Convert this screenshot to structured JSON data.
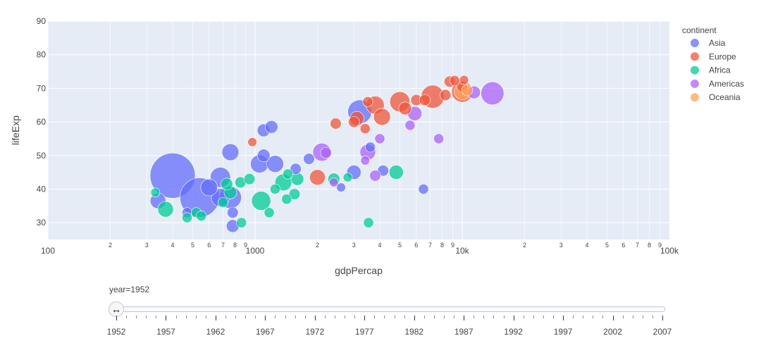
{
  "chart_data": {
    "type": "scatter",
    "xlabel": "gdpPercap",
    "ylabel": "lifeExp",
    "xscale": "log",
    "xlim": [
      100,
      100000
    ],
    "ylim": [
      25,
      90
    ],
    "grid": true,
    "legend_title": "continent",
    "legend_position": "right",
    "x_ticklabels_major": [
      "100",
      "1000",
      "10k",
      "100k"
    ],
    "x_ticklabels_minor": [
      "2",
      "3",
      "4",
      "5",
      "6",
      "7",
      "8",
      "9"
    ],
    "y_ticks": [
      30,
      40,
      50,
      60,
      70,
      80,
      90
    ],
    "series": [
      {
        "name": "Asia",
        "color": "#636efa",
        "points": [
          {
            "x": 400,
            "y": 44,
            "s": 1.0
          },
          {
            "x": 540,
            "y": 37.5,
            "s": 0.76
          },
          {
            "x": 3200,
            "y": 63,
            "s": 0.28
          },
          {
            "x": 600,
            "y": 40.5,
            "s": 0.14
          },
          {
            "x": 680,
            "y": 43.5,
            "s": 0.2
          },
          {
            "x": 680,
            "y": 37.5,
            "s": 0.16
          },
          {
            "x": 760,
            "y": 37.5,
            "s": 0.24
          },
          {
            "x": 760,
            "y": 51,
            "s": 0.14
          },
          {
            "x": 1050,
            "y": 47.5,
            "s": 0.16
          },
          {
            "x": 1250,
            "y": 47.5,
            "s": 0.14
          },
          {
            "x": 1100,
            "y": 57.5,
            "s": 0.08
          },
          {
            "x": 1200,
            "y": 58.5,
            "s": 0.08
          },
          {
            "x": 1100,
            "y": 50,
            "s": 0.08
          },
          {
            "x": 340,
            "y": 36.5,
            "s": 0.12
          },
          {
            "x": 470,
            "y": 33,
            "s": 0.05
          },
          {
            "x": 780,
            "y": 29,
            "s": 0.08
          },
          {
            "x": 780,
            "y": 33,
            "s": 0.06
          },
          {
            "x": 1570,
            "y": 46,
            "s": 0.06
          },
          {
            "x": 1820,
            "y": 49,
            "s": 0.06
          },
          {
            "x": 3000,
            "y": 45,
            "s": 0.1
          },
          {
            "x": 4150,
            "y": 45.5,
            "s": 0.06
          },
          {
            "x": 6500,
            "y": 40,
            "s": 0.05
          },
          {
            "x": 3600,
            "y": 52.5,
            "s": 0.05
          },
          {
            "x": 2600,
            "y": 40.5,
            "s": 0.04
          }
        ]
      },
      {
        "name": "Europe",
        "color": "#ef553b",
        "points": [
          {
            "x": 7200,
            "y": 67.5,
            "s": 0.26
          },
          {
            "x": 10000,
            "y": 69,
            "s": 0.22
          },
          {
            "x": 5000,
            "y": 66,
            "s": 0.2
          },
          {
            "x": 3800,
            "y": 65,
            "s": 0.16
          },
          {
            "x": 4100,
            "y": 61.5,
            "s": 0.14
          },
          {
            "x": 3100,
            "y": 61,
            "s": 0.1
          },
          {
            "x": 2000,
            "y": 43.5,
            "s": 0.12
          },
          {
            "x": 5300,
            "y": 64,
            "s": 0.08
          },
          {
            "x": 6000,
            "y": 66.5,
            "s": 0.06
          },
          {
            "x": 6600,
            "y": 66.5,
            "s": 0.06
          },
          {
            "x": 8300,
            "y": 68,
            "s": 0.06
          },
          {
            "x": 8700,
            "y": 72,
            "s": 0.06
          },
          {
            "x": 9200,
            "y": 72.3,
            "s": 0.05
          },
          {
            "x": 10200,
            "y": 72.5,
            "s": 0.04
          },
          {
            "x": 3500,
            "y": 66,
            "s": 0.05
          },
          {
            "x": 2450,
            "y": 59.5,
            "s": 0.06
          },
          {
            "x": 3400,
            "y": 58,
            "s": 0.05
          },
          {
            "x": 3000,
            "y": 60,
            "s": 0.06
          },
          {
            "x": 970,
            "y": 54,
            "s": 0.04
          },
          {
            "x": 10000,
            "y": 70.5,
            "s": 0.06
          }
        ]
      },
      {
        "name": "Africa",
        "color": "#00cc96",
        "points": [
          {
            "x": 1070,
            "y": 36.5,
            "s": 0.18
          },
          {
            "x": 1370,
            "y": 42,
            "s": 0.14
          },
          {
            "x": 370,
            "y": 34,
            "s": 0.12
          },
          {
            "x": 4800,
            "y": 45,
            "s": 0.1
          },
          {
            "x": 1600,
            "y": 43,
            "s": 0.08
          },
          {
            "x": 760,
            "y": 39,
            "s": 0.08
          },
          {
            "x": 730,
            "y": 41.5,
            "s": 0.07
          },
          {
            "x": 850,
            "y": 42,
            "s": 0.06
          },
          {
            "x": 2400,
            "y": 43,
            "s": 0.07
          },
          {
            "x": 1550,
            "y": 38.5,
            "s": 0.06
          },
          {
            "x": 1420,
            "y": 37,
            "s": 0.05
          },
          {
            "x": 860,
            "y": 30,
            "s": 0.05
          },
          {
            "x": 520,
            "y": 33,
            "s": 0.05
          },
          {
            "x": 550,
            "y": 32,
            "s": 0.05
          },
          {
            "x": 470,
            "y": 31.5,
            "s": 0.05
          },
          {
            "x": 940,
            "y": 43,
            "s": 0.06
          },
          {
            "x": 1170,
            "y": 33,
            "s": 0.05
          },
          {
            "x": 1440,
            "y": 44.5,
            "s": 0.05
          },
          {
            "x": 3530,
            "y": 30,
            "s": 0.05
          },
          {
            "x": 2800,
            "y": 43.5,
            "s": 0.04
          },
          {
            "x": 700,
            "y": 36,
            "s": 0.05
          },
          {
            "x": 1250,
            "y": 40,
            "s": 0.05
          },
          {
            "x": 330,
            "y": 39,
            "s": 0.04
          }
        ]
      },
      {
        "name": "Americas",
        "color": "#ab63fa",
        "points": [
          {
            "x": 13990,
            "y": 68.5,
            "s": 0.26
          },
          {
            "x": 2100,
            "y": 51,
            "s": 0.16
          },
          {
            "x": 3500,
            "y": 51,
            "s": 0.12
          },
          {
            "x": 5900,
            "y": 62.5,
            "s": 0.1
          },
          {
            "x": 11400,
            "y": 68.8,
            "s": 0.08
          },
          {
            "x": 2200,
            "y": 50.8,
            "s": 0.06
          },
          {
            "x": 3800,
            "y": 44,
            "s": 0.06
          },
          {
            "x": 7700,
            "y": 55,
            "s": 0.05
          },
          {
            "x": 4000,
            "y": 55,
            "s": 0.05
          },
          {
            "x": 5600,
            "y": 59,
            "s": 0.05
          },
          {
            "x": 3400,
            "y": 48.5,
            "s": 0.04
          },
          {
            "x": 2400,
            "y": 42,
            "s": 0.04
          }
        ]
      },
      {
        "name": "Oceania",
        "color": "#ffa15a",
        "points": [
          {
            "x": 10040,
            "y": 69.1,
            "s": 0.14
          },
          {
            "x": 10556,
            "y": 69.4,
            "s": 0.06
          }
        ]
      }
    ]
  },
  "slider": {
    "current_label": "year=1952",
    "years": [
      "1952",
      "1957",
      "1962",
      "1967",
      "1972",
      "1977",
      "1982",
      "1987",
      "1992",
      "1997",
      "2002",
      "2007"
    ],
    "handle_icon": "↔"
  }
}
